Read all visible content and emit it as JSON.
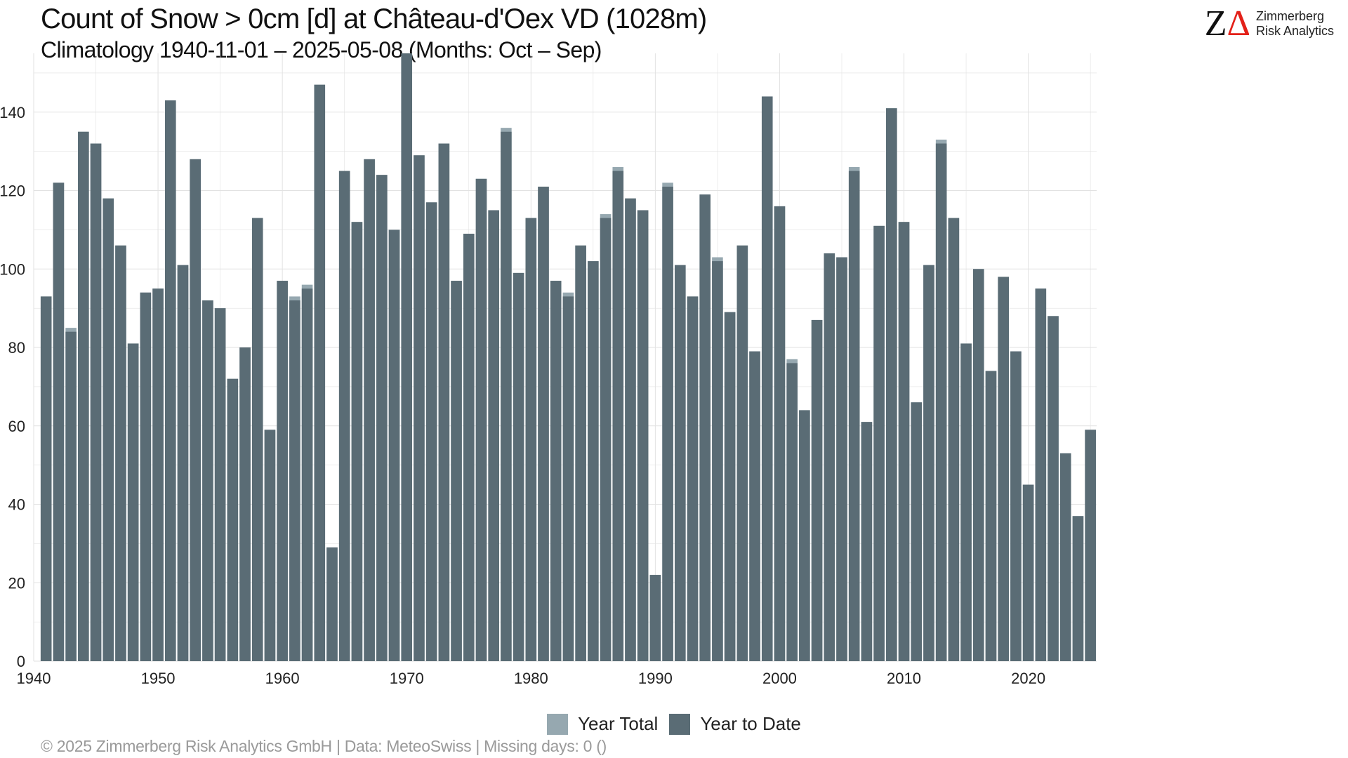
{
  "header": {
    "title": "Count of Snow > 0cm [d] at Château-d'Oex  VD (1028m)",
    "subtitle": "Climatology 1940-11-01 – 2025-05-08 (Months: Oct – Sep)"
  },
  "logo": {
    "line1": "Zimmerberg",
    "line2": "Risk Analytics"
  },
  "legend": {
    "total_label": "Year Total",
    "ytd_label": "Year to Date"
  },
  "footer": {
    "text": "©  2025 Zimmerberg Risk Analytics GmbH | Data: MeteoSwiss | Missing days: 0 ()"
  },
  "colors": {
    "year_total": "#96a8b0",
    "year_to_date": "#5a6c75",
    "grid": "#e2e2e2",
    "tick_text": "#222222"
  },
  "chart_data": {
    "type": "bar",
    "title": "Count of Snow > 0cm [d] at Château-d'Oex  VD (1028m)",
    "xlabel": "",
    "ylabel": "",
    "x_ticks": [
      1940,
      1950,
      1960,
      1970,
      1980,
      1990,
      2000,
      2010,
      2020
    ],
    "y_ticks": [
      0,
      20,
      40,
      60,
      80,
      100,
      120,
      140
    ],
    "xlim": [
      1940,
      2025.5
    ],
    "ylim": [
      0,
      155
    ],
    "grid": true,
    "legend_position": "bottom",
    "years": [
      1941,
      1942,
      1943,
      1944,
      1945,
      1946,
      1947,
      1948,
      1949,
      1950,
      1951,
      1952,
      1953,
      1954,
      1955,
      1956,
      1957,
      1958,
      1959,
      1960,
      1961,
      1962,
      1963,
      1964,
      1965,
      1966,
      1967,
      1968,
      1969,
      1970,
      1971,
      1972,
      1973,
      1974,
      1975,
      1976,
      1977,
      1978,
      1979,
      1980,
      1981,
      1982,
      1983,
      1984,
      1985,
      1986,
      1987,
      1988,
      1989,
      1990,
      1991,
      1992,
      1993,
      1994,
      1995,
      1996,
      1997,
      1998,
      1999,
      2000,
      2001,
      2002,
      2003,
      2004,
      2005,
      2006,
      2007,
      2008,
      2009,
      2010,
      2011,
      2012,
      2013,
      2014,
      2015,
      2016,
      2017,
      2018,
      2019,
      2020,
      2021,
      2022,
      2023,
      2024,
      2025
    ],
    "series": [
      {
        "name": "Year Total",
        "values": [
          93,
          122,
          85,
          135,
          132,
          118,
          106,
          81,
          94,
          95,
          143,
          101,
          128,
          92,
          90,
          72,
          80,
          113,
          59,
          97,
          93,
          96,
          147,
          29,
          125,
          112,
          128,
          124,
          110,
          155,
          129,
          117,
          132,
          97,
          109,
          123,
          115,
          136,
          99,
          113,
          121,
          97,
          94,
          106,
          102,
          114,
          126,
          118,
          115,
          22,
          122,
          101,
          93,
          119,
          103,
          89,
          106,
          79,
          144,
          116,
          77,
          64,
          87,
          104,
          103,
          126,
          61,
          111,
          141,
          112,
          66,
          101,
          133,
          113,
          81,
          100,
          74,
          98,
          79,
          45,
          95,
          88,
          53,
          37,
          59
        ]
      },
      {
        "name": "Year to Date",
        "values": [
          93,
          122,
          84,
          135,
          132,
          118,
          106,
          81,
          94,
          95,
          143,
          101,
          128,
          92,
          90,
          72,
          80,
          113,
          59,
          97,
          92,
          95,
          147,
          29,
          125,
          112,
          128,
          124,
          110,
          155,
          129,
          117,
          132,
          97,
          109,
          123,
          115,
          135,
          99,
          113,
          121,
          97,
          93,
          106,
          102,
          113,
          125,
          118,
          115,
          22,
          121,
          101,
          93,
          119,
          102,
          89,
          106,
          79,
          144,
          116,
          76,
          64,
          87,
          104,
          103,
          125,
          61,
          111,
          141,
          112,
          66,
          101,
          132,
          113,
          81,
          100,
          74,
          98,
          79,
          45,
          95,
          88,
          53,
          37,
          59
        ]
      }
    ]
  }
}
